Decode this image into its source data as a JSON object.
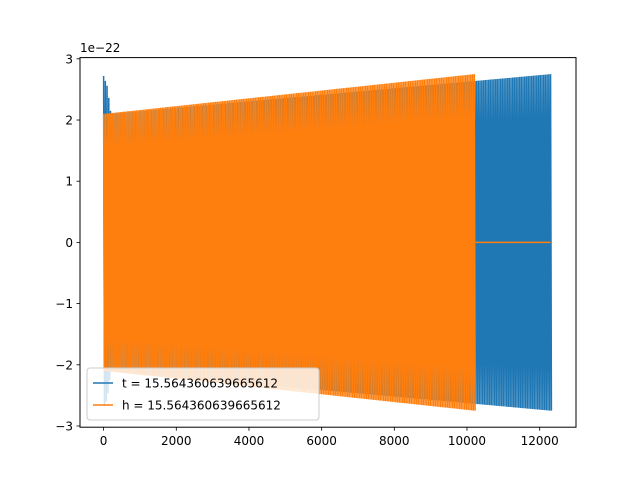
{
  "chart_data": {
    "type": "line",
    "title": "",
    "xlabel": "",
    "ylabel": "",
    "y_offset_label": "1e−22",
    "xlim": [
      -650,
      13000
    ],
    "ylim": [
      -3.02,
      3.02
    ],
    "x_ticks": [
      0,
      2000,
      4000,
      6000,
      8000,
      10000,
      12000
    ],
    "x_tick_labels": [
      "0",
      "2000",
      "4000",
      "6000",
      "8000",
      "10000",
      "12000"
    ],
    "y_ticks": [
      -3,
      -2,
      -1,
      0,
      1,
      2,
      3
    ],
    "y_tick_labels": [
      "−3",
      "−2",
      "−1",
      "0",
      "1",
      "2",
      "3"
    ],
    "grid": false,
    "legend_position": "lower-left",
    "series": [
      {
        "name": "t = 15.564360639665612",
        "color": "#1f77b4",
        "x_range": [
          0,
          12300
        ],
        "envelope": [
          [
            0,
            2.72
          ],
          [
            100,
            2.55
          ],
          [
            200,
            2.1
          ],
          [
            12300,
            2.75
          ]
        ],
        "cycles": 260,
        "note_shape": "oscillation"
      },
      {
        "name": "h = 15.564360639665612",
        "color": "#ff7f0e",
        "x_range": [
          0,
          10200
        ],
        "envelope": [
          [
            0,
            2.1
          ],
          [
            10200,
            2.75
          ]
        ],
        "cycles": 215,
        "flat_after": [
          10200,
          12300
        ]
      }
    ]
  }
}
